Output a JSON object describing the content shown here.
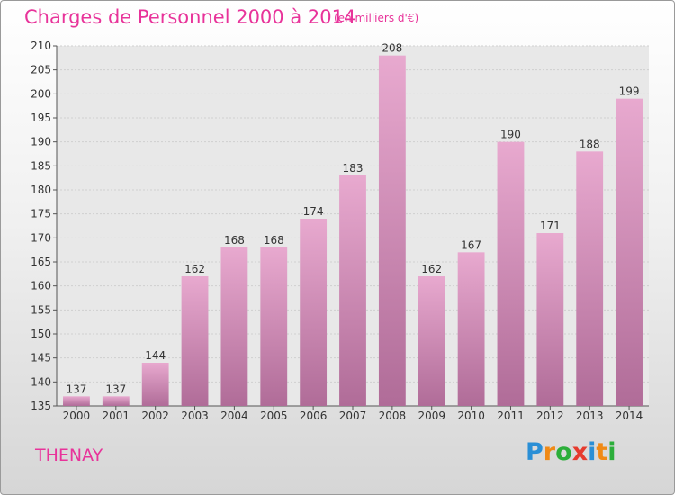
{
  "title": "Charges de Personnel 2000 à 2014",
  "subtitle": "(en milliers d'€)",
  "commune": "THENAY",
  "logo": {
    "letters": [
      "P",
      "r",
      "o",
      "x",
      "i",
      "t",
      "i"
    ],
    "colors": [
      "#2a8fd6",
      "#f08a16",
      "#2cae3a",
      "#e63b2e",
      "#2a8fd6",
      "#f08a16",
      "#2cae3a"
    ]
  },
  "colors": {
    "bar_top": "#e8a9cf",
    "bar_bottom": "#b06c98",
    "text": "#e8339a"
  },
  "chart_data": {
    "type": "bar",
    "categories": [
      "2000",
      "2001",
      "2002",
      "2003",
      "2004",
      "2005",
      "2006",
      "2007",
      "2008",
      "2009",
      "2010",
      "2011",
      "2012",
      "2013",
      "2014"
    ],
    "values": [
      137,
      137,
      144,
      162,
      168,
      168,
      174,
      183,
      208,
      162,
      167,
      190,
      171,
      188,
      199
    ],
    "ylim": [
      135,
      210
    ],
    "yticks": [
      135,
      140,
      145,
      150,
      155,
      160,
      165,
      170,
      175,
      180,
      185,
      190,
      195,
      200,
      205,
      210
    ],
    "grid": true
  }
}
